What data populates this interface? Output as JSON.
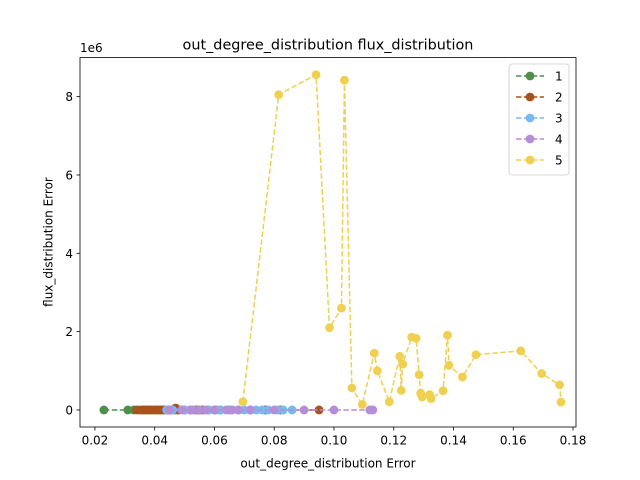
{
  "chart_data": {
    "type": "scatter",
    "title": "out_degree_distribution flux_distribution",
    "xlabel": "out_degree_distribution Error",
    "ylabel": "flux_distribution Error",
    "y_offset_label": "1e6",
    "xlim": [
      0.015,
      0.181
    ],
    "ylim": [
      -435000,
      9000000
    ],
    "x_ticks": [
      0.02,
      0.04,
      0.06,
      0.08,
      0.1,
      0.12,
      0.14,
      0.16,
      0.18
    ],
    "x_tick_labels": [
      "0.02",
      "0.04",
      "0.06",
      "0.08",
      "0.10",
      "0.12",
      "0.14",
      "0.16",
      "0.18"
    ],
    "y_ticks": [
      0,
      2000000,
      4000000,
      6000000,
      8000000
    ],
    "y_tick_labels": [
      "0",
      "2",
      "4",
      "6",
      "8"
    ],
    "grid": false,
    "legend_position": "top-right",
    "line_style": "dashed",
    "marker": "circle",
    "series": [
      {
        "name": "1",
        "color": "#4e8f4e",
        "points": [
          [
            0.023,
            0
          ],
          [
            0.031,
            0
          ],
          [
            0.033,
            0
          ],
          [
            0.035,
            0
          ],
          [
            0.036,
            0
          ],
          [
            0.037,
            0
          ],
          [
            0.038,
            0
          ],
          [
            0.04,
            0
          ],
          [
            0.041,
            0
          ],
          [
            0.042,
            0
          ],
          [
            0.043,
            0
          ],
          [
            0.044,
            0
          ],
          [
            0.045,
            0
          ],
          [
            0.047,
            0
          ],
          [
            0.048,
            0
          ],
          [
            0.05,
            0
          ],
          [
            0.052,
            0
          ],
          [
            0.055,
            0
          ]
        ]
      },
      {
        "name": "2",
        "color": "#a9531c",
        "points": [
          [
            0.034,
            0
          ],
          [
            0.036,
            0
          ],
          [
            0.037,
            0
          ],
          [
            0.038,
            0
          ],
          [
            0.039,
            0
          ],
          [
            0.04,
            0
          ],
          [
            0.041,
            0
          ],
          [
            0.042,
            0
          ],
          [
            0.043,
            0
          ],
          [
            0.044,
            0
          ],
          [
            0.045,
            0
          ],
          [
            0.046,
            0
          ],
          [
            0.047,
            50000
          ],
          [
            0.048,
            0
          ],
          [
            0.05,
            0
          ],
          [
            0.052,
            0
          ],
          [
            0.054,
            0
          ],
          [
            0.056,
            0
          ],
          [
            0.058,
            0
          ],
          [
            0.06,
            0
          ],
          [
            0.062,
            0
          ],
          [
            0.065,
            0
          ],
          [
            0.068,
            0
          ],
          [
            0.072,
            0
          ],
          [
            0.077,
            0
          ],
          [
            0.082,
            0
          ],
          [
            0.095,
            0
          ]
        ]
      },
      {
        "name": "3",
        "color": "#7ab8f0",
        "points": [
          [
            0.044,
            0
          ],
          [
            0.046,
            0
          ],
          [
            0.05,
            0
          ],
          [
            0.052,
            0
          ],
          [
            0.055,
            0
          ],
          [
            0.058,
            0
          ],
          [
            0.06,
            0
          ],
          [
            0.061,
            0
          ],
          [
            0.062,
            0
          ],
          [
            0.065,
            0
          ],
          [
            0.068,
            0
          ],
          [
            0.07,
            0
          ],
          [
            0.072,
            0
          ],
          [
            0.074,
            0
          ],
          [
            0.076,
            0
          ],
          [
            0.078,
            0
          ],
          [
            0.081,
            0
          ],
          [
            0.083,
            0
          ],
          [
            0.086,
            0
          ]
        ]
      },
      {
        "name": "4",
        "color": "#b58ed8",
        "points": [
          [
            0.045,
            0
          ],
          [
            0.049,
            0
          ],
          [
            0.052,
            0
          ],
          [
            0.053,
            0
          ],
          [
            0.055,
            0
          ],
          [
            0.057,
            0
          ],
          [
            0.06,
            0
          ],
          [
            0.064,
            0
          ],
          [
            0.066,
            0
          ],
          [
            0.068,
            0
          ],
          [
            0.072,
            0
          ],
          [
            0.08,
            0
          ],
          [
            0.09,
            0
          ],
          [
            0.1,
            0
          ],
          [
            0.112,
            0
          ],
          [
            0.113,
            0
          ]
        ]
      },
      {
        "name": "5",
        "color": "#f0d050",
        "points": [
          [
            0.0695,
            210000
          ],
          [
            0.0815,
            8050000
          ],
          [
            0.094,
            8560000
          ],
          [
            0.0985,
            2100000
          ],
          [
            0.1025,
            2600000
          ],
          [
            0.1035,
            8420000
          ],
          [
            0.106,
            560000
          ],
          [
            0.1095,
            140000
          ],
          [
            0.1135,
            1450000
          ],
          [
            0.1145,
            1000000
          ],
          [
            0.1185,
            210000
          ],
          [
            0.122,
            1370000
          ],
          [
            0.1225,
            500000
          ],
          [
            0.123,
            1170000
          ],
          [
            0.126,
            1860000
          ],
          [
            0.1275,
            1830000
          ],
          [
            0.1285,
            900000
          ],
          [
            0.129,
            430000
          ],
          [
            0.1295,
            330000
          ],
          [
            0.132,
            390000
          ],
          [
            0.1325,
            290000
          ],
          [
            0.1365,
            490000
          ],
          [
            0.138,
            1910000
          ],
          [
            0.1385,
            1140000
          ],
          [
            0.143,
            840000
          ],
          [
            0.1475,
            1410000
          ],
          [
            0.1625,
            1510000
          ],
          [
            0.1695,
            930000
          ],
          [
            0.1755,
            640000
          ],
          [
            0.176,
            200000
          ]
        ]
      }
    ]
  }
}
